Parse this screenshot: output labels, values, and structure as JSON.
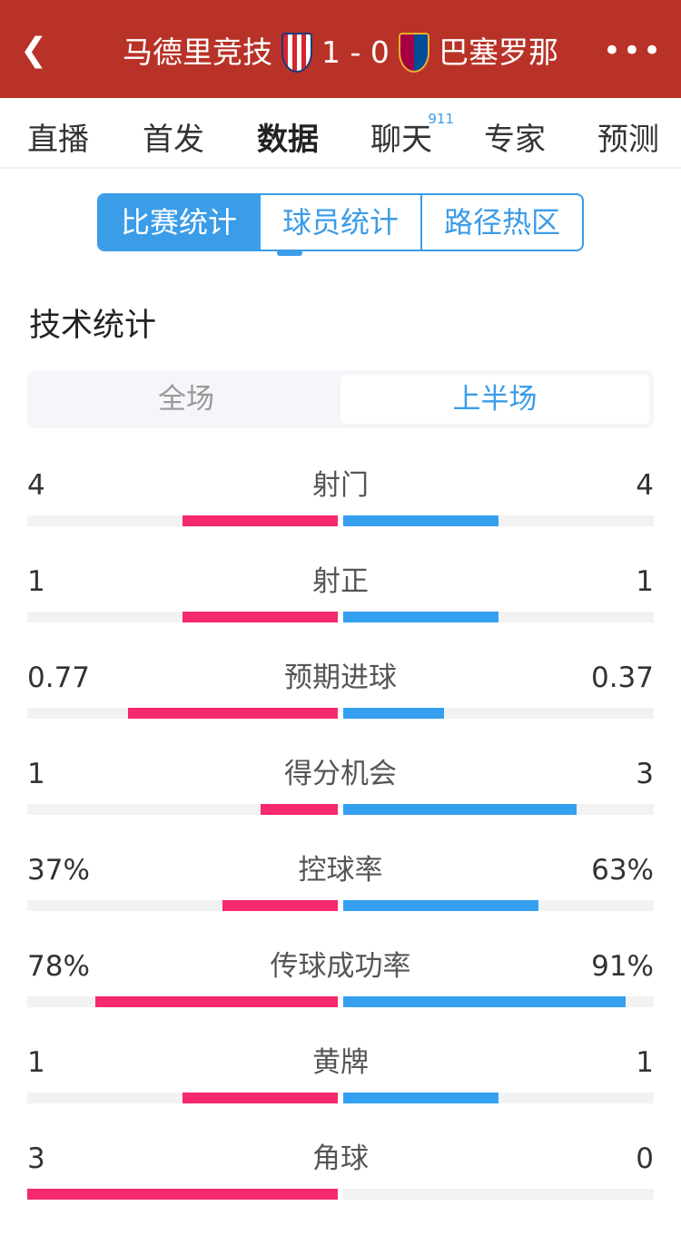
{
  "header": {
    "home": "马德里竞技",
    "score": "1 - 0",
    "away": "巴塞罗那",
    "back_icon": "chevron-left-icon",
    "more_icon": "more-icon"
  },
  "tabs": [
    {
      "label": "直播"
    },
    {
      "label": "首发"
    },
    {
      "label": "数据",
      "active": true
    },
    {
      "label": "聊天",
      "badge": "911"
    },
    {
      "label": "专家"
    },
    {
      "label": "预测"
    }
  ],
  "subtabs": [
    "比赛统计",
    "球员统计",
    "路径热区"
  ],
  "section_title": "技术统计",
  "period": {
    "options": [
      "全场",
      "上半场"
    ],
    "selected": "上半场"
  },
  "colors": {
    "home": "#f5296b",
    "away": "#35a0f0",
    "header": "#b83227",
    "accent": "#3b9ce8"
  },
  "stats": [
    {
      "label": "射门",
      "home": "4",
      "away": "4",
      "home_share": 0.5,
      "away_share": 0.5
    },
    {
      "label": "射正",
      "home": "1",
      "away": "1",
      "home_share": 0.5,
      "away_share": 0.5
    },
    {
      "label": "预期进球",
      "home": "0.77",
      "away": "0.37",
      "home_share": 0.675,
      "away_share": 0.325
    },
    {
      "label": "得分机会",
      "home": "1",
      "away": "3",
      "home_share": 0.25,
      "away_share": 0.75
    },
    {
      "label": "控球率",
      "home": "37%",
      "away": "63%",
      "home_share": 0.37,
      "away_share": 0.63
    },
    {
      "label": "传球成功率",
      "home": "78%",
      "away": "91%",
      "home_share": 0.78,
      "away_share": 0.91
    },
    {
      "label": "黄牌",
      "home": "1",
      "away": "1",
      "home_share": 0.5,
      "away_share": 0.5
    },
    {
      "label": "角球",
      "home": "3",
      "away": "0",
      "home_share": 1,
      "away_share": 0
    }
  ]
}
